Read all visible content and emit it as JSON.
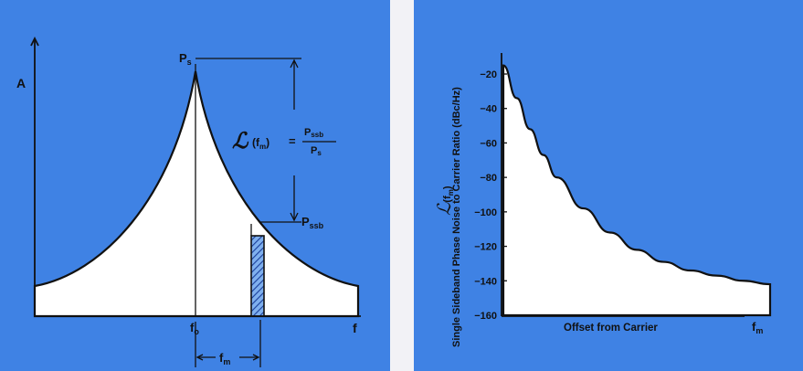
{
  "panels": {
    "left": {
      "y_axis_label": "A",
      "x_axis_label": "f",
      "peak_label": "Ps",
      "peak_label_main": "P",
      "peak_label_sub": "s",
      "sideband_label_main": "P",
      "sideband_label_sub": "ssb",
      "center_label_main": "f",
      "center_label_sub": "o",
      "offset_label_main": "f",
      "offset_label_sub": "m",
      "formula": {
        "script_L": "ℒ",
        "arg": "(f",
        "arg_sub": "m",
        "arg_close": ")",
        "equals": "=",
        "num_main": "P",
        "num_sub": "ssb",
        "den_main": "P",
        "den_sub": "s"
      }
    },
    "right": {
      "y_axis_title_main": "Single Sideband Phase Noise to Carrier Ratio (dBc/Hz)",
      "y_axis_symbol_main": "ℒ",
      "y_axis_symbol_arg": "(f",
      "y_axis_symbol_sub": "m",
      "y_axis_symbol_close": ")",
      "x_axis_title": "Offset from Carrier",
      "x_end_main": "f",
      "x_end_sub": "m"
    }
  },
  "colors": {
    "panel": "#3f82e4",
    "curve_fill": "#ffffff",
    "ink": "#111111",
    "hatch": "#1a3f9a"
  },
  "chart_data": [
    {
      "type": "area",
      "title": "",
      "description": "Oscillator output spectrum with phase-noise skirts around carrier f_o",
      "x_axis": {
        "label": "f",
        "ticks": [
          "fo"
        ]
      },
      "y_axis": {
        "label": "A"
      },
      "annotations": [
        "Ps",
        "Pssb",
        "fm"
      ]
    },
    {
      "type": "line",
      "title": "",
      "xlabel": "Offset from Carrier",
      "ylabel": "Single Sideband Phase Noise to Carrier Ratio (dBc/Hz)",
      "ylim": [
        -160,
        -20
      ],
      "yticks": [
        -20,
        -40,
        -60,
        -80,
        -100,
        -120,
        -140,
        -160
      ],
      "x": [
        0.0,
        0.05,
        0.1,
        0.15,
        0.2,
        0.3,
        0.4,
        0.5,
        0.6,
        0.7,
        0.8,
        0.9,
        1.0
      ],
      "values": [
        -15,
        -34,
        -52,
        -67,
        -80,
        -98,
        -112,
        -122,
        -129,
        -134,
        -137,
        -140,
        -142
      ]
    }
  ]
}
